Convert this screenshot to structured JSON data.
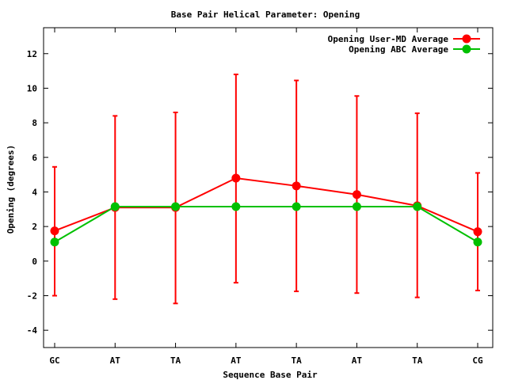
{
  "chart_data": {
    "type": "line",
    "title": "Base Pair Helical Parameter: Opening",
    "xlabel": "Sequence Base Pair",
    "ylabel": "Opening (degrees)",
    "categories": [
      "GC",
      "AT",
      "TA",
      "AT",
      "TA",
      "AT",
      "TA",
      "CG"
    ],
    "ylim": [
      -5,
      13.5
    ],
    "yticks": [
      -4,
      -2,
      0,
      2,
      4,
      6,
      8,
      10,
      12
    ],
    "ytick_labels": [
      "-4",
      "-2",
      "0",
      "2",
      "4",
      "6",
      "8",
      "10",
      "12"
    ],
    "grid": false,
    "legend_position": "top-right",
    "series": [
      {
        "name": "Opening User-MD Average",
        "color": "#ff0000",
        "values": [
          1.75,
          3.1,
          3.1,
          4.8,
          4.35,
          3.85,
          3.2,
          1.7
        ],
        "error_upper": [
          5.45,
          8.4,
          8.6,
          10.8,
          10.45,
          9.55,
          8.55,
          5.1
        ],
        "error_lower": [
          -2.0,
          -2.2,
          -2.45,
          -1.25,
          -1.75,
          -1.85,
          -2.1,
          -1.7
        ]
      },
      {
        "name": "Opening ABC Average",
        "color": "#00c000",
        "values": [
          1.1,
          3.15,
          3.15,
          3.15,
          3.15,
          3.15,
          3.15,
          1.1
        ]
      }
    ]
  }
}
